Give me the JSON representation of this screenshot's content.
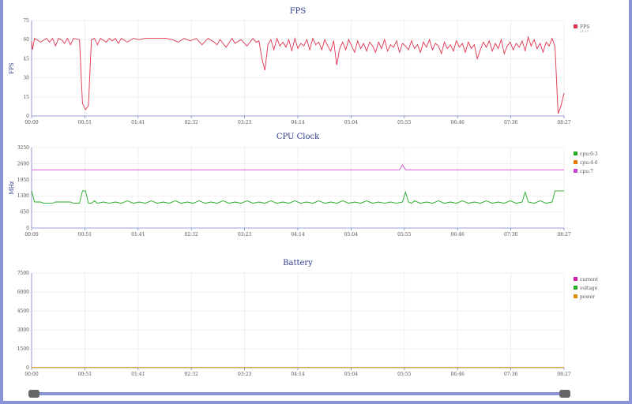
{
  "chart_data": [
    {
      "type": "line",
      "title": "FPS",
      "ylabel": "FPS",
      "ylim": [
        0,
        75
      ],
      "yticks": [
        "0",
        "15",
        "30",
        "45",
        "60",
        "75"
      ],
      "xticks": [
        "00:00",
        "00:51",
        "01:41",
        "02:32",
        "03:23",
        "04:14",
        "05:04",
        "05:55",
        "06:46",
        "07:36",
        "08:27"
      ],
      "legend_position": "right",
      "series": [
        {
          "name": "FPS",
          "color": "#e0334d",
          "legend_sub": "21.57",
          "points": [
            [
              0,
              59
            ],
            [
              0.3,
              52
            ],
            [
              1,
              61
            ],
            [
              3,
              58
            ],
            [
              5,
              61
            ],
            [
              6,
              58
            ],
            [
              7,
              61
            ],
            [
              8,
              55
            ],
            [
              9,
              61
            ],
            [
              10,
              60
            ],
            [
              11,
              57
            ],
            [
              12,
              61
            ],
            [
              13,
              56
            ],
            [
              14,
              61
            ],
            [
              16,
              60
            ],
            [
              17,
              10
            ],
            [
              18,
              5
            ],
            [
              19,
              8
            ],
            [
              20,
              60
            ],
            [
              21,
              61
            ],
            [
              22,
              56
            ],
            [
              23,
              61
            ],
            [
              25,
              58
            ],
            [
              26,
              61
            ],
            [
              27,
              59
            ],
            [
              28,
              61
            ],
            [
              29,
              57
            ],
            [
              30,
              61
            ],
            [
              32,
              58
            ],
            [
              34,
              61
            ],
            [
              36,
              60
            ],
            [
              38,
              61
            ],
            [
              45,
              61
            ],
            [
              47,
              60
            ],
            [
              49,
              58
            ],
            [
              51,
              61
            ],
            [
              53,
              59
            ],
            [
              55,
              61
            ],
            [
              57,
              56
            ],
            [
              59,
              61
            ],
            [
              61,
              58
            ],
            [
              62,
              56
            ],
            [
              63,
              60
            ],
            [
              65,
              54
            ],
            [
              67,
              61
            ],
            [
              68,
              57
            ],
            [
              70,
              60
            ],
            [
              72,
              55
            ],
            [
              74,
              61
            ],
            [
              75,
              58
            ],
            [
              76,
              59
            ],
            [
              77,
              45
            ],
            [
              78,
              36
            ],
            [
              79,
              56
            ],
            [
              80,
              60
            ],
            [
              81,
              52
            ],
            [
              82,
              61
            ],
            [
              83,
              55
            ],
            [
              84,
              58
            ],
            [
              85,
              54
            ],
            [
              86,
              60
            ],
            [
              87,
              51
            ],
            [
              88,
              61
            ],
            [
              89,
              53
            ],
            [
              90,
              57
            ],
            [
              91,
              55
            ],
            [
              92,
              60
            ],
            [
              93,
              52
            ],
            [
              94,
              61
            ],
            [
              95,
              56
            ],
            [
              96,
              58
            ],
            [
              97,
              52
            ],
            [
              98,
              60
            ],
            [
              99,
              55
            ],
            [
              100,
              51
            ],
            [
              101,
              59
            ],
            [
              102,
              40
            ],
            [
              103,
              53
            ],
            [
              104,
              58
            ],
            [
              105,
              52
            ],
            [
              106,
              60
            ],
            [
              107,
              55
            ],
            [
              108,
              50
            ],
            [
              109,
              59
            ],
            [
              110,
              53
            ],
            [
              111,
              57
            ],
            [
              112,
              51
            ],
            [
              113,
              58
            ],
            [
              114,
              55
            ],
            [
              115,
              50
            ],
            [
              116,
              58
            ],
            [
              117,
              53
            ],
            [
              118,
              60
            ],
            [
              119,
              51
            ],
            [
              120,
              56
            ],
            [
              121,
              54
            ],
            [
              122,
              59
            ],
            [
              123,
              50
            ],
            [
              124,
              57
            ],
            [
              125,
              55
            ],
            [
              126,
              52
            ],
            [
              127,
              59
            ],
            [
              128,
              53
            ],
            [
              129,
              56
            ],
            [
              130,
              50
            ],
            [
              131,
              58
            ],
            [
              132,
              54
            ],
            [
              133,
              60
            ],
            [
              134,
              52
            ],
            [
              135,
              57
            ],
            [
              136,
              55
            ],
            [
              137,
              49
            ],
            [
              138,
              58
            ],
            [
              139,
              53
            ],
            [
              140,
              56
            ],
            [
              141,
              51
            ],
            [
              142,
              59
            ],
            [
              143,
              54
            ],
            [
              144,
              57
            ],
            [
              145,
              50
            ],
            [
              146,
              58
            ],
            [
              147,
              53
            ],
            [
              148,
              56
            ],
            [
              149,
              45
            ],
            [
              150,
              52
            ],
            [
              151,
              58
            ],
            [
              152,
              54
            ],
            [
              153,
              59
            ],
            [
              154,
              51
            ],
            [
              155,
              57
            ],
            [
              156,
              53
            ],
            [
              157,
              60
            ],
            [
              158,
              49
            ],
            [
              159,
              55
            ],
            [
              160,
              58
            ],
            [
              161,
              52
            ],
            [
              162,
              57
            ],
            [
              163,
              54
            ],
            [
              164,
              59
            ],
            [
              165,
              51
            ],
            [
              166,
              62
            ],
            [
              167,
              55
            ],
            [
              168,
              60
            ],
            [
              169,
              53
            ],
            [
              170,
              57
            ],
            [
              171,
              50
            ],
            [
              172,
              58
            ],
            [
              173,
              55
            ],
            [
              174,
              61
            ],
            [
              175,
              54
            ],
            [
              176,
              2
            ],
            [
              177,
              8
            ],
            [
              178,
              18
            ]
          ]
        }
      ]
    },
    {
      "type": "line",
      "title": "CPU Clock",
      "ylabel": "MHz",
      "ylim": [
        0,
        3250
      ],
      "yticks": [
        "0",
        "650",
        "1300",
        "1950",
        "2600",
        "3250"
      ],
      "xticks": [
        "00:00",
        "00:51",
        "01:41",
        "02:32",
        "03:23",
        "04:14",
        "05:04",
        "05:55",
        "06:46",
        "07:36",
        "08:27"
      ],
      "legend_position": "right",
      "series": [
        {
          "name": "cpu:0-3",
          "color": "#22aa22",
          "points": [
            [
              0,
              1500
            ],
            [
              1,
              1050
            ],
            [
              3,
              1050
            ],
            [
              4,
              1000
            ],
            [
              6,
              1000
            ],
            [
              7,
              1000
            ],
            [
              8,
              1050
            ],
            [
              10,
              1050
            ],
            [
              12,
              1050
            ],
            [
              13,
              1050
            ],
            [
              14,
              1000
            ],
            [
              15,
              1000
            ],
            [
              16,
              1000
            ],
            [
              17,
              1500
            ],
            [
              18,
              1500
            ],
            [
              19,
              1000
            ],
            [
              20,
              1000
            ],
            [
              21,
              1100
            ],
            [
              22,
              1000
            ],
            [
              24,
              1050
            ],
            [
              26,
              1000
            ],
            [
              28,
              1050
            ],
            [
              30,
              1000
            ],
            [
              32,
              1100
            ],
            [
              34,
              1000
            ],
            [
              36,
              1050
            ],
            [
              38,
              1000
            ],
            [
              40,
              1100
            ],
            [
              42,
              1000
            ],
            [
              44,
              1050
            ],
            [
              46,
              1000
            ],
            [
              48,
              1100
            ],
            [
              50,
              1000
            ],
            [
              52,
              1050
            ],
            [
              54,
              1000
            ],
            [
              56,
              1100
            ],
            [
              58,
              1000
            ],
            [
              60,
              1050
            ],
            [
              62,
              1000
            ],
            [
              64,
              1100
            ],
            [
              66,
              1000
            ],
            [
              68,
              1050
            ],
            [
              70,
              1000
            ],
            [
              72,
              1100
            ],
            [
              74,
              1000
            ],
            [
              76,
              1050
            ],
            [
              78,
              1000
            ],
            [
              80,
              1100
            ],
            [
              82,
              1000
            ],
            [
              84,
              1050
            ],
            [
              86,
              1000
            ],
            [
              88,
              1100
            ],
            [
              90,
              1000
            ],
            [
              92,
              1050
            ],
            [
              94,
              1000
            ],
            [
              96,
              1100
            ],
            [
              98,
              1000
            ],
            [
              100,
              1050
            ],
            [
              102,
              1000
            ],
            [
              104,
              1100
            ],
            [
              106,
              1000
            ],
            [
              108,
              1050
            ],
            [
              110,
              1000
            ],
            [
              112,
              1100
            ],
            [
              114,
              1000
            ],
            [
              116,
              1050
            ],
            [
              118,
              1000
            ],
            [
              120,
              1050
            ],
            [
              122,
              1000
            ],
            [
              124,
              1050
            ],
            [
              125,
              1450
            ],
            [
              126,
              1050
            ],
            [
              127,
              1000
            ],
            [
              128,
              1100
            ],
            [
              130,
              1000
            ],
            [
              132,
              1050
            ],
            [
              134,
              1000
            ],
            [
              136,
              1100
            ],
            [
              138,
              1000
            ],
            [
              140,
              1050
            ],
            [
              142,
              1000
            ],
            [
              144,
              1100
            ],
            [
              146,
              1000
            ],
            [
              148,
              1050
            ],
            [
              150,
              1000
            ],
            [
              152,
              1100
            ],
            [
              154,
              1000
            ],
            [
              156,
              1050
            ],
            [
              158,
              1000
            ],
            [
              160,
              1100
            ],
            [
              162,
              1000
            ],
            [
              164,
              1050
            ],
            [
              165,
              1450
            ],
            [
              166,
              1050
            ],
            [
              168,
              1000
            ],
            [
              170,
              1100
            ],
            [
              172,
              1000
            ],
            [
              174,
              1050
            ],
            [
              175,
              1500
            ],
            [
              178,
              1500
            ]
          ]
        },
        {
          "name": "cpu:4-6",
          "color": "#e07a00",
          "points": []
        },
        {
          "name": "cpu:7",
          "color": "#cc44cc",
          "points": [
            [
              0,
              2350
            ],
            [
              123,
              2350
            ],
            [
              124,
              2550
            ],
            [
              125,
              2350
            ],
            [
              178,
              2350
            ]
          ]
        }
      ]
    },
    {
      "type": "line",
      "title": "Battery",
      "ylabel": "",
      "ylim": [
        0,
        7500
      ],
      "yticks": [
        "0",
        "1500",
        "3000",
        "4500",
        "6000",
        "7500"
      ],
      "xticks": [
        "00:00",
        "00:51",
        "01:41",
        "02:32",
        "03:23",
        "04:14",
        "05:04",
        "05:55",
        "06:46",
        "07:36",
        "08:27"
      ],
      "legend_position": "right",
      "series": [
        {
          "name": "current",
          "color": "#cc22aa",
          "points": []
        },
        {
          "name": "voltage",
          "color": "#22aa22",
          "points": []
        },
        {
          "name": "power",
          "color": "#e08a00",
          "points": [
            [
              0,
              20
            ],
            [
              178,
              20
            ]
          ]
        }
      ]
    }
  ]
}
